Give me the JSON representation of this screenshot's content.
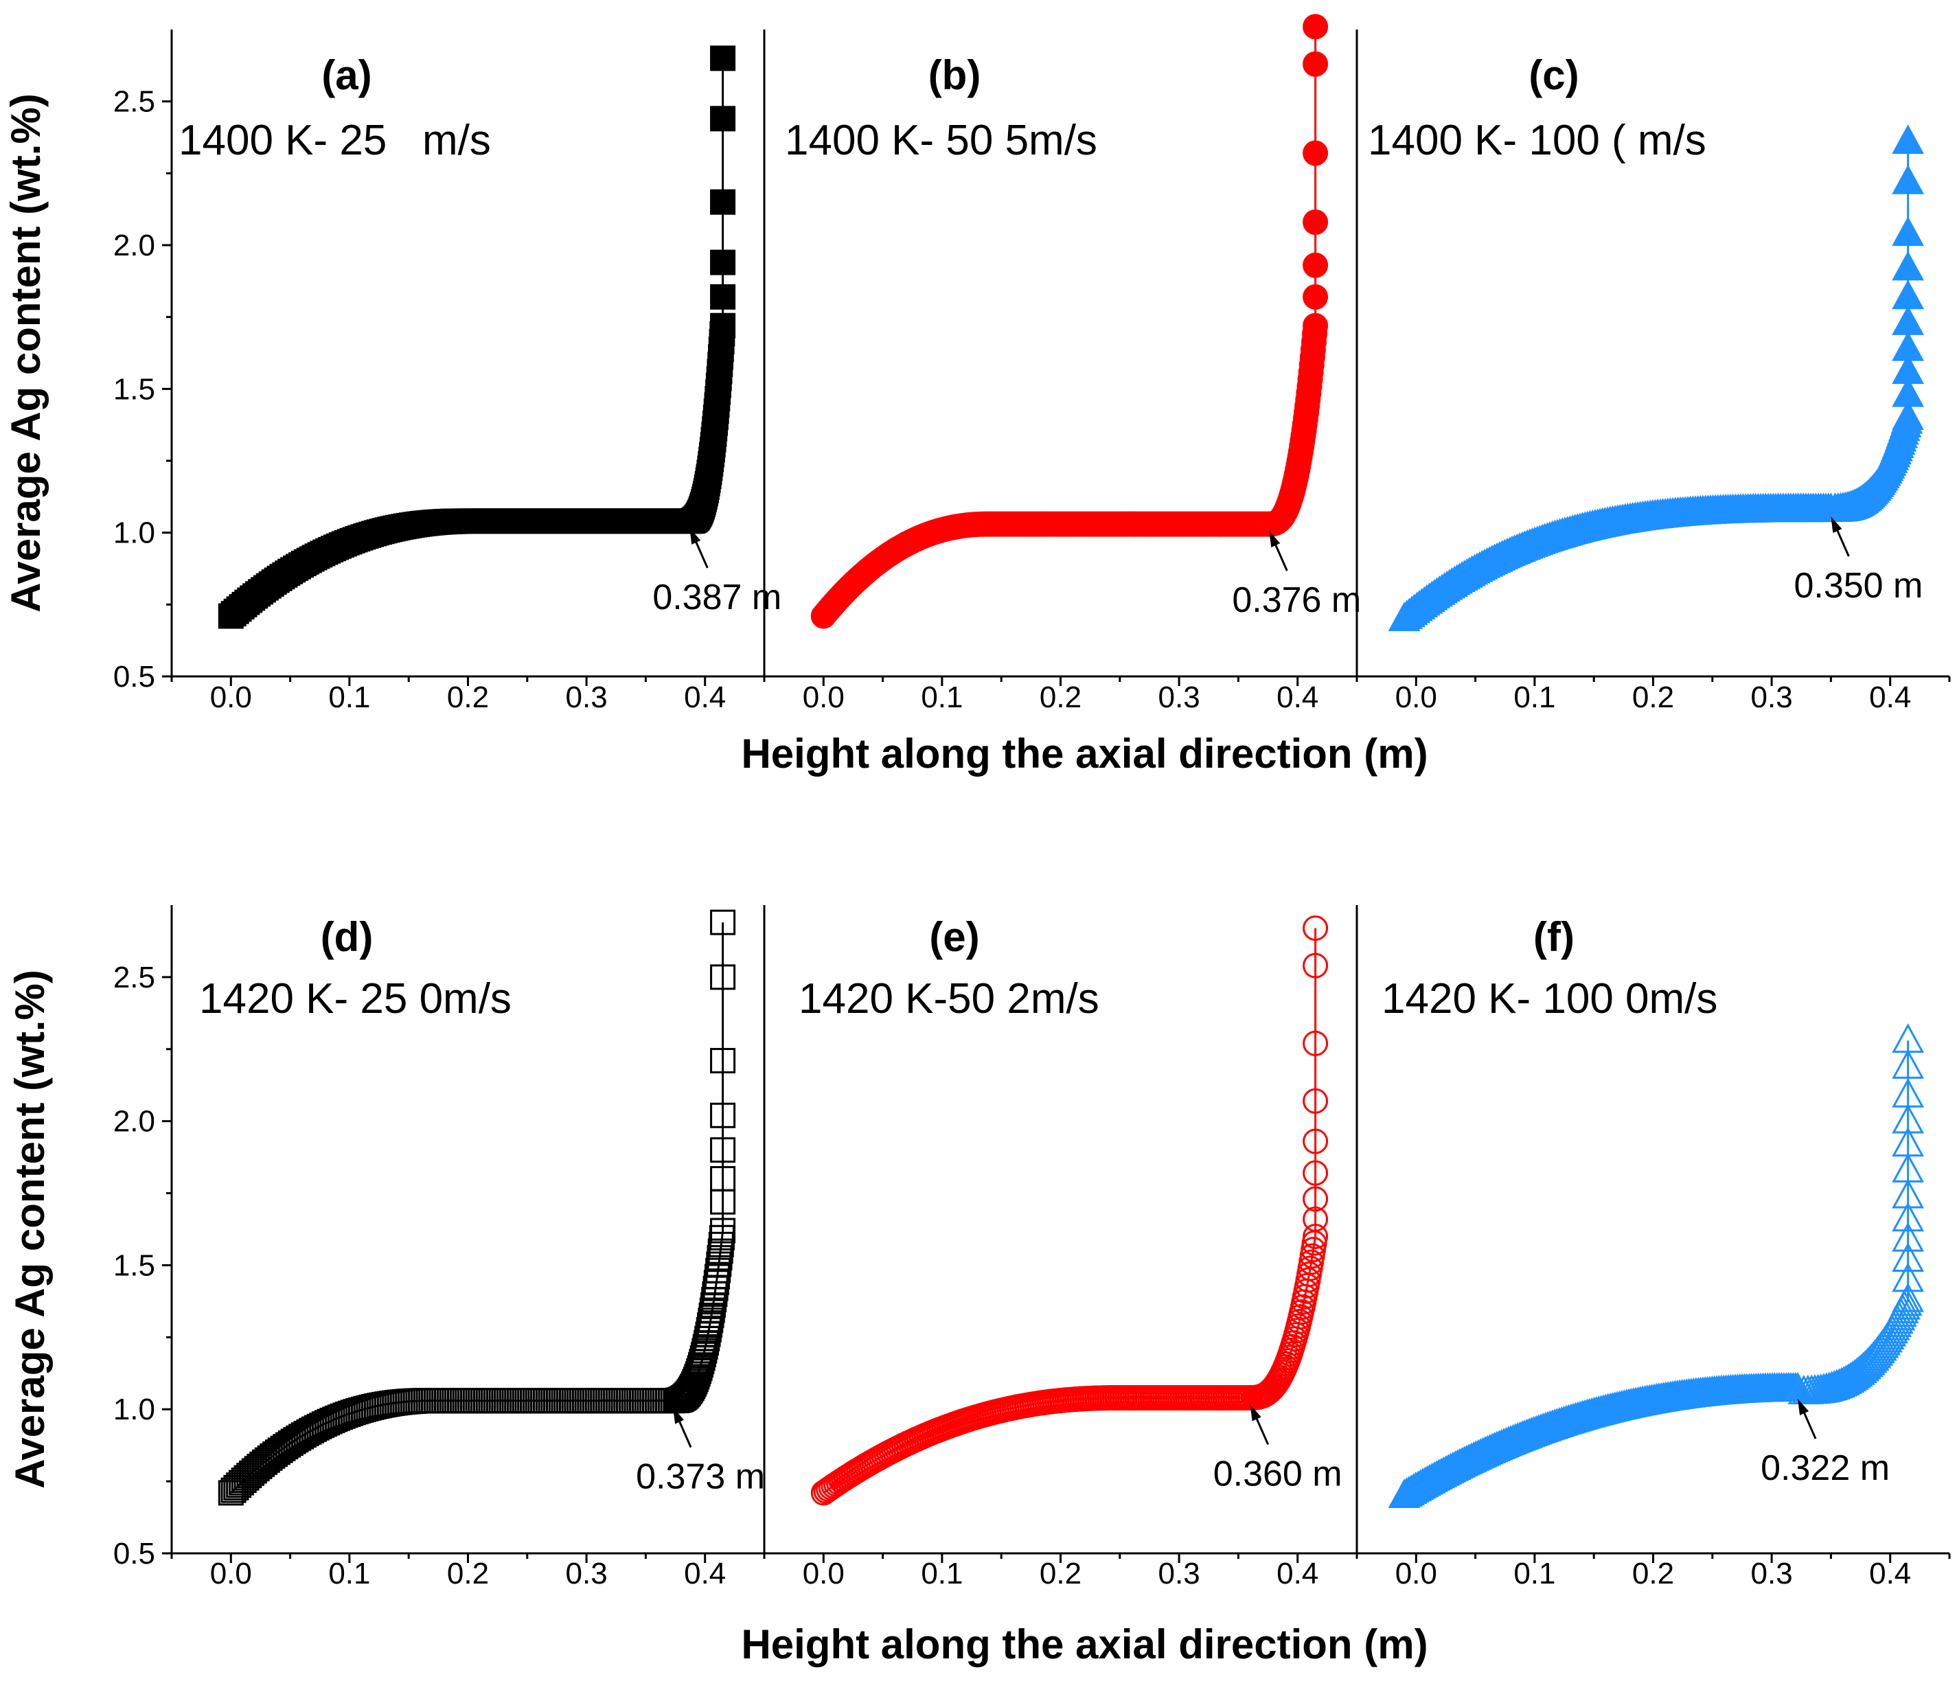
{
  "chart_data": {
    "type": "scatter",
    "x_label": "Height along the axial direction (m)",
    "y_label": "Average Ag content (wt.%)",
    "xlim": [
      -0.05,
      0.45
    ],
    "ylim": [
      0.5,
      2.75
    ],
    "x_ticks": [
      "0.0",
      "0.1",
      "0.2",
      "0.3",
      "0.4"
    ],
    "y_ticks": [
      "0.5",
      "1.0",
      "1.5",
      "2.0",
      "2.5"
    ],
    "rows": [
      {
        "name": "top",
        "x_label": "Height along the axial direction (m)",
        "y_label": "Average Ag content (wt.%)"
      },
      {
        "name": "bottom",
        "x_label": "Height along the axial direction (m)",
        "y_label": "Average Ag content (wt.%)"
      }
    ],
    "panels": [
      {
        "letter": "(a)",
        "condition": "1400 K- 25   m/s",
        "color": "#000000",
        "marker": "square",
        "filled": true,
        "breakpoint": 0.387,
        "annotation": "0.387 m",
        "x0": 0.0,
        "y0": 0.71,
        "plateau": 1.04,
        "y_kink": 1.04,
        "flat_from": 0.2,
        "tail_max": 1.72,
        "tail": [
          1.82,
          1.94,
          2.15,
          2.44,
          2.65
        ],
        "rowIdx": 0,
        "colIdx": 0
      },
      {
        "letter": "(b)",
        "condition": "1400 K- 50 5m/s",
        "color": "#ff0000",
        "marker": "circle",
        "filled": true,
        "breakpoint": 0.376,
        "annotation": "0.376 m",
        "x0": 0.0,
        "y0": 0.71,
        "plateau": 1.03,
        "y_kink": 1.03,
        "flat_from": 0.14,
        "tail_max": 1.72,
        "tail": [
          1.82,
          1.93,
          2.08,
          2.32,
          2.63,
          2.76
        ],
        "rowIdx": 0,
        "colIdx": 1
      },
      {
        "letter": "(c)",
        "condition": "1400 K- 100 ( m/s",
        "color": "#1e90ff",
        "marker": "triangle",
        "filled": true,
        "breakpoint": 0.35,
        "annotation": "0.350 m",
        "x0": -0.01,
        "y0": 0.7,
        "plateau": 1.1,
        "y_kink": 1.08,
        "flat_from": 0.35,
        "tail_max": 1.4,
        "tail": [
          1.48,
          1.56,
          1.64,
          1.73,
          1.82,
          1.92,
          2.04,
          2.22,
          2.36
        ],
        "rowIdx": 0,
        "colIdx": 2
      },
      {
        "letter": "(d)",
        "condition": "1420 K- 25 0m/s",
        "color": "#000000",
        "marker": "square",
        "filled": false,
        "breakpoint": 0.373,
        "annotation": "0.373 m",
        "x0": 0.0,
        "y0": 0.71,
        "plateau": 1.03,
        "y_kink": 1.03,
        "flat_from": 0.17,
        "tail_max": 1.62,
        "tail": [
          1.72,
          1.8,
          1.9,
          2.02,
          2.21,
          2.5,
          2.69
        ],
        "rowIdx": 1,
        "colIdx": 0
      },
      {
        "letter": "(e)",
        "condition": "1420 K-50 2m/s",
        "color": "#ff0000",
        "marker": "circle",
        "filled": false,
        "breakpoint": 0.36,
        "annotation": "0.360 m",
        "x0": 0.0,
        "y0": 0.71,
        "plateau": 1.04,
        "y_kink": 1.04,
        "flat_from": 0.25,
        "tail_max": 1.6,
        "tail": [
          1.66,
          1.73,
          1.82,
          1.93,
          2.07,
          2.27,
          2.54,
          2.67
        ],
        "rowIdx": 1,
        "colIdx": 1
      },
      {
        "letter": "(f)",
        "condition": "1420 K- 100 0m/s",
        "color": "#1e90ff",
        "marker": "triangle",
        "filled": false,
        "breakpoint": 0.322,
        "annotation": "0.322 m",
        "x0": -0.01,
        "y0": 0.7,
        "plateau": 1.07,
        "y_kink": 1.06,
        "flat_from": 0.32,
        "tail_max": 1.38,
        "tail": [
          1.45,
          1.52,
          1.59,
          1.66,
          1.74,
          1.83,
          1.92,
          2.0,
          2.09,
          2.19,
          2.28
        ],
        "rowIdx": 1,
        "colIdx": 2
      }
    ]
  }
}
